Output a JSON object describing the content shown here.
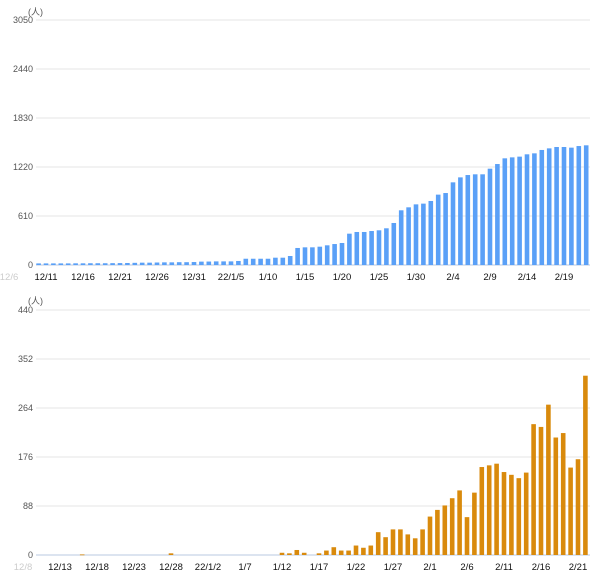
{
  "chart_data": [
    {
      "type": "bar",
      "title": "",
      "ylabel": "(人)",
      "xlabel": "",
      "color": "#5aa0f7",
      "ylim": [
        0,
        3050
      ],
      "yticks": [
        "0",
        "610",
        "1220",
        "1830",
        "2440",
        "3050"
      ],
      "xticks": [
        {
          "label": "12/6",
          "date": "12/6",
          "faint": true
        },
        {
          "label": "12/11",
          "date": "12/11"
        },
        {
          "label": "12/16",
          "date": "12/16"
        },
        {
          "label": "12/21",
          "date": "12/21"
        },
        {
          "label": "12/26",
          "date": "12/26"
        },
        {
          "label": "12/31",
          "date": "12/31"
        },
        {
          "label": "22/1/5",
          "date": "1/5"
        },
        {
          "label": "1/10",
          "date": "1/10"
        },
        {
          "label": "1/15",
          "date": "1/15"
        },
        {
          "label": "1/20",
          "date": "1/20"
        },
        {
          "label": "1/25",
          "date": "1/25"
        },
        {
          "label": "1/30",
          "date": "1/30"
        },
        {
          "label": "2/4",
          "date": "2/4"
        },
        {
          "label": "2/9",
          "date": "2/9"
        },
        {
          "label": "2/14",
          "date": "2/14"
        },
        {
          "label": "2/19",
          "date": "2/19"
        }
      ],
      "start_date": "12/10",
      "values": [
        20,
        20,
        20,
        20,
        20,
        21,
        21,
        22,
        22,
        22,
        23,
        24,
        25,
        27,
        29,
        29,
        31,
        33,
        33,
        35,
        35,
        37,
        42,
        43,
        45,
        45,
        45,
        50,
        78,
        78,
        78,
        78,
        91,
        91,
        112,
        212,
        220,
        220,
        228,
        245,
        261,
        274,
        390,
        411,
        411,
        423,
        432,
        457,
        523,
        681,
        718,
        755,
        764,
        797,
        876,
        896,
        1029,
        1091,
        1120,
        1129,
        1129,
        1199,
        1257,
        1328,
        1340,
        1349,
        1378,
        1390,
        1432,
        1452,
        1469,
        1469,
        1461,
        1481,
        1490
      ]
    },
    {
      "type": "bar",
      "title": "",
      "ylabel": "(人)",
      "xlabel": "",
      "color": "#d98a0c",
      "ylim": [
        0,
        440
      ],
      "yticks": [
        "0",
        "88",
        "176",
        "264",
        "352",
        "440"
      ],
      "xticks": [
        {
          "label": "12/8",
          "date": "12/8",
          "faint": true
        },
        {
          "label": "12/13",
          "date": "12/13"
        },
        {
          "label": "12/18",
          "date": "12/18"
        },
        {
          "label": "12/23",
          "date": "12/23"
        },
        {
          "label": "12/28",
          "date": "12/28"
        },
        {
          "label": "22/1/2",
          "date": "1/2"
        },
        {
          "label": "1/7",
          "date": "1/7"
        },
        {
          "label": "1/12",
          "date": "1/12"
        },
        {
          "label": "1/17",
          "date": "1/17"
        },
        {
          "label": "1/22",
          "date": "1/22"
        },
        {
          "label": "1/27",
          "date": "1/27"
        },
        {
          "label": "2/1",
          "date": "2/1"
        },
        {
          "label": "2/6",
          "date": "2/6"
        },
        {
          "label": "2/11",
          "date": "2/11"
        },
        {
          "label": "2/16",
          "date": "2/16"
        },
        {
          "label": "2/21",
          "date": "2/21"
        }
      ],
      "start_date": "12/8",
      "values": [
        0,
        0,
        0,
        0,
        0,
        0,
        0,
        0,
        1,
        0,
        0,
        0,
        0,
        0,
        0,
        0,
        0,
        0,
        0,
        0,
        3,
        0,
        0,
        0,
        0,
        0,
        0,
        0,
        0,
        0,
        0,
        0,
        0,
        0,
        0,
        4,
        3,
        9,
        4,
        0,
        3,
        8,
        14,
        8,
        8,
        17,
        13,
        17,
        41,
        32,
        46,
        46,
        37,
        30,
        46,
        69,
        81,
        89,
        102,
        116,
        68,
        112,
        158,
        161,
        164,
        149,
        144,
        138,
        148,
        235,
        230,
        270,
        211,
        219,
        157,
        172,
        322
      ]
    }
  ]
}
